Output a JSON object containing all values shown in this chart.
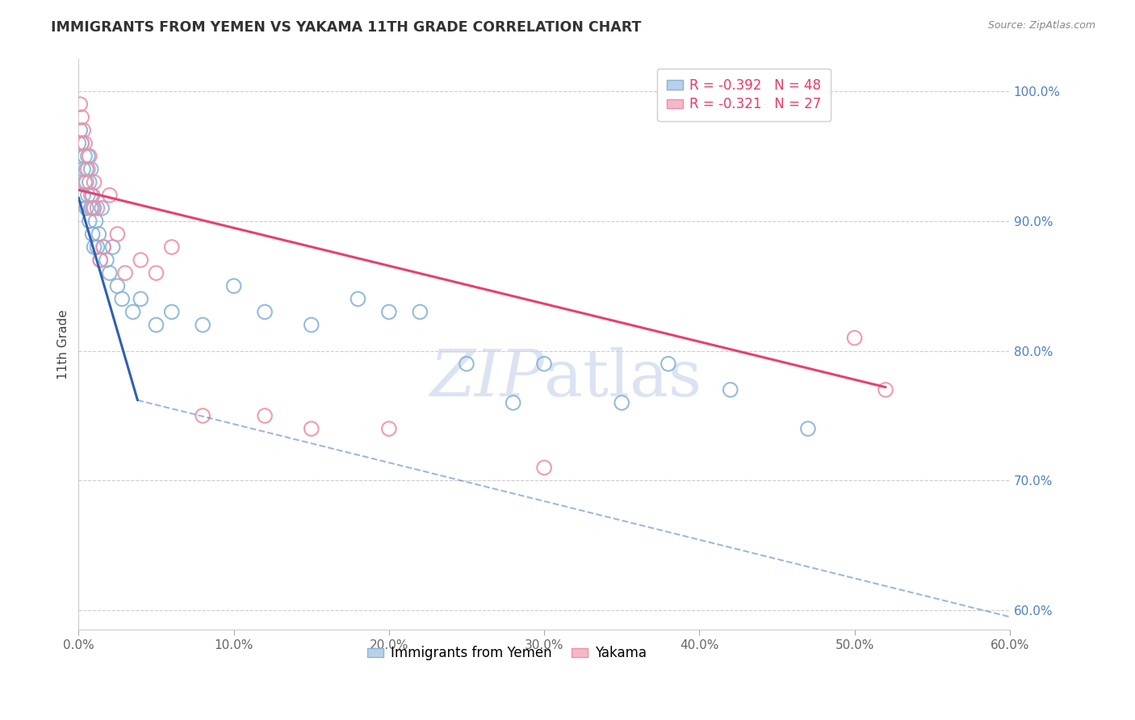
{
  "title": "IMMIGRANTS FROM YEMEN VS YAKAMA 11TH GRADE CORRELATION CHART",
  "source": "Source: ZipAtlas.com",
  "ylabel": "11th Grade",
  "legend_label1": "Immigrants from Yemen",
  "legend_label2": "Yakama",
  "r1": -0.392,
  "n1": 48,
  "r2": -0.321,
  "n2": 27,
  "xlim": [
    0.0,
    0.6
  ],
  "ylim": [
    0.585,
    1.025
  ],
  "xticks": [
    0.0,
    0.1,
    0.2,
    0.3,
    0.4,
    0.5,
    0.6
  ],
  "yticks_right": [
    0.6,
    0.7,
    0.8,
    0.9,
    1.0
  ],
  "color_blue_fill": "#b8d0ea",
  "color_pink_fill": "#f5b8c8",
  "color_blue_edge": "#8ab4d8",
  "color_pink_edge": "#f090a8",
  "color_blue_line": "#3060b0",
  "color_pink_line": "#e84070",
  "color_right_axis": "#5080c0",
  "watermark_color": "#ccd8ee",
  "blue_points_x": [
    0.0,
    0.001,
    0.002,
    0.003,
    0.003,
    0.004,
    0.004,
    0.005,
    0.005,
    0.006,
    0.006,
    0.007,
    0.007,
    0.008,
    0.008,
    0.009,
    0.009,
    0.01,
    0.01,
    0.011,
    0.012,
    0.013,
    0.014,
    0.015,
    0.016,
    0.018,
    0.02,
    0.022,
    0.025,
    0.028,
    0.035,
    0.04,
    0.05,
    0.06,
    0.08,
    0.1,
    0.12,
    0.15,
    0.18,
    0.2,
    0.22,
    0.25,
    0.28,
    0.3,
    0.35,
    0.38,
    0.42,
    0.47
  ],
  "blue_points_y": [
    0.96,
    0.97,
    0.96,
    0.94,
    0.92,
    0.95,
    0.93,
    0.94,
    0.91,
    0.95,
    0.92,
    0.93,
    0.9,
    0.94,
    0.91,
    0.92,
    0.89,
    0.91,
    0.88,
    0.9,
    0.88,
    0.89,
    0.87,
    0.91,
    0.88,
    0.87,
    0.86,
    0.88,
    0.85,
    0.84,
    0.83,
    0.84,
    0.82,
    0.83,
    0.82,
    0.85,
    0.83,
    0.82,
    0.84,
    0.83,
    0.83,
    0.79,
    0.76,
    0.79,
    0.76,
    0.79,
    0.77,
    0.74
  ],
  "pink_points_x": [
    0.001,
    0.002,
    0.002,
    0.003,
    0.004,
    0.005,
    0.006,
    0.007,
    0.008,
    0.009,
    0.01,
    0.012,
    0.014,
    0.016,
    0.02,
    0.025,
    0.03,
    0.04,
    0.05,
    0.06,
    0.08,
    0.12,
    0.15,
    0.2,
    0.3,
    0.5,
    0.52
  ],
  "pink_points_y": [
    0.99,
    0.98,
    0.96,
    0.97,
    0.96,
    0.93,
    0.94,
    0.95,
    0.92,
    0.91,
    0.93,
    0.91,
    0.87,
    0.88,
    0.92,
    0.89,
    0.86,
    0.87,
    0.86,
    0.88,
    0.75,
    0.75,
    0.74,
    0.74,
    0.71,
    0.81,
    0.77
  ],
  "blue_line_x": [
    0.0,
    0.038
  ],
  "blue_line_y": [
    0.918,
    0.762
  ],
  "pink_line_x": [
    0.0,
    0.52
  ],
  "pink_line_y": [
    0.924,
    0.772
  ],
  "dashed_line_x": [
    0.038,
    0.6
  ],
  "dashed_line_y": [
    0.762,
    0.595
  ]
}
